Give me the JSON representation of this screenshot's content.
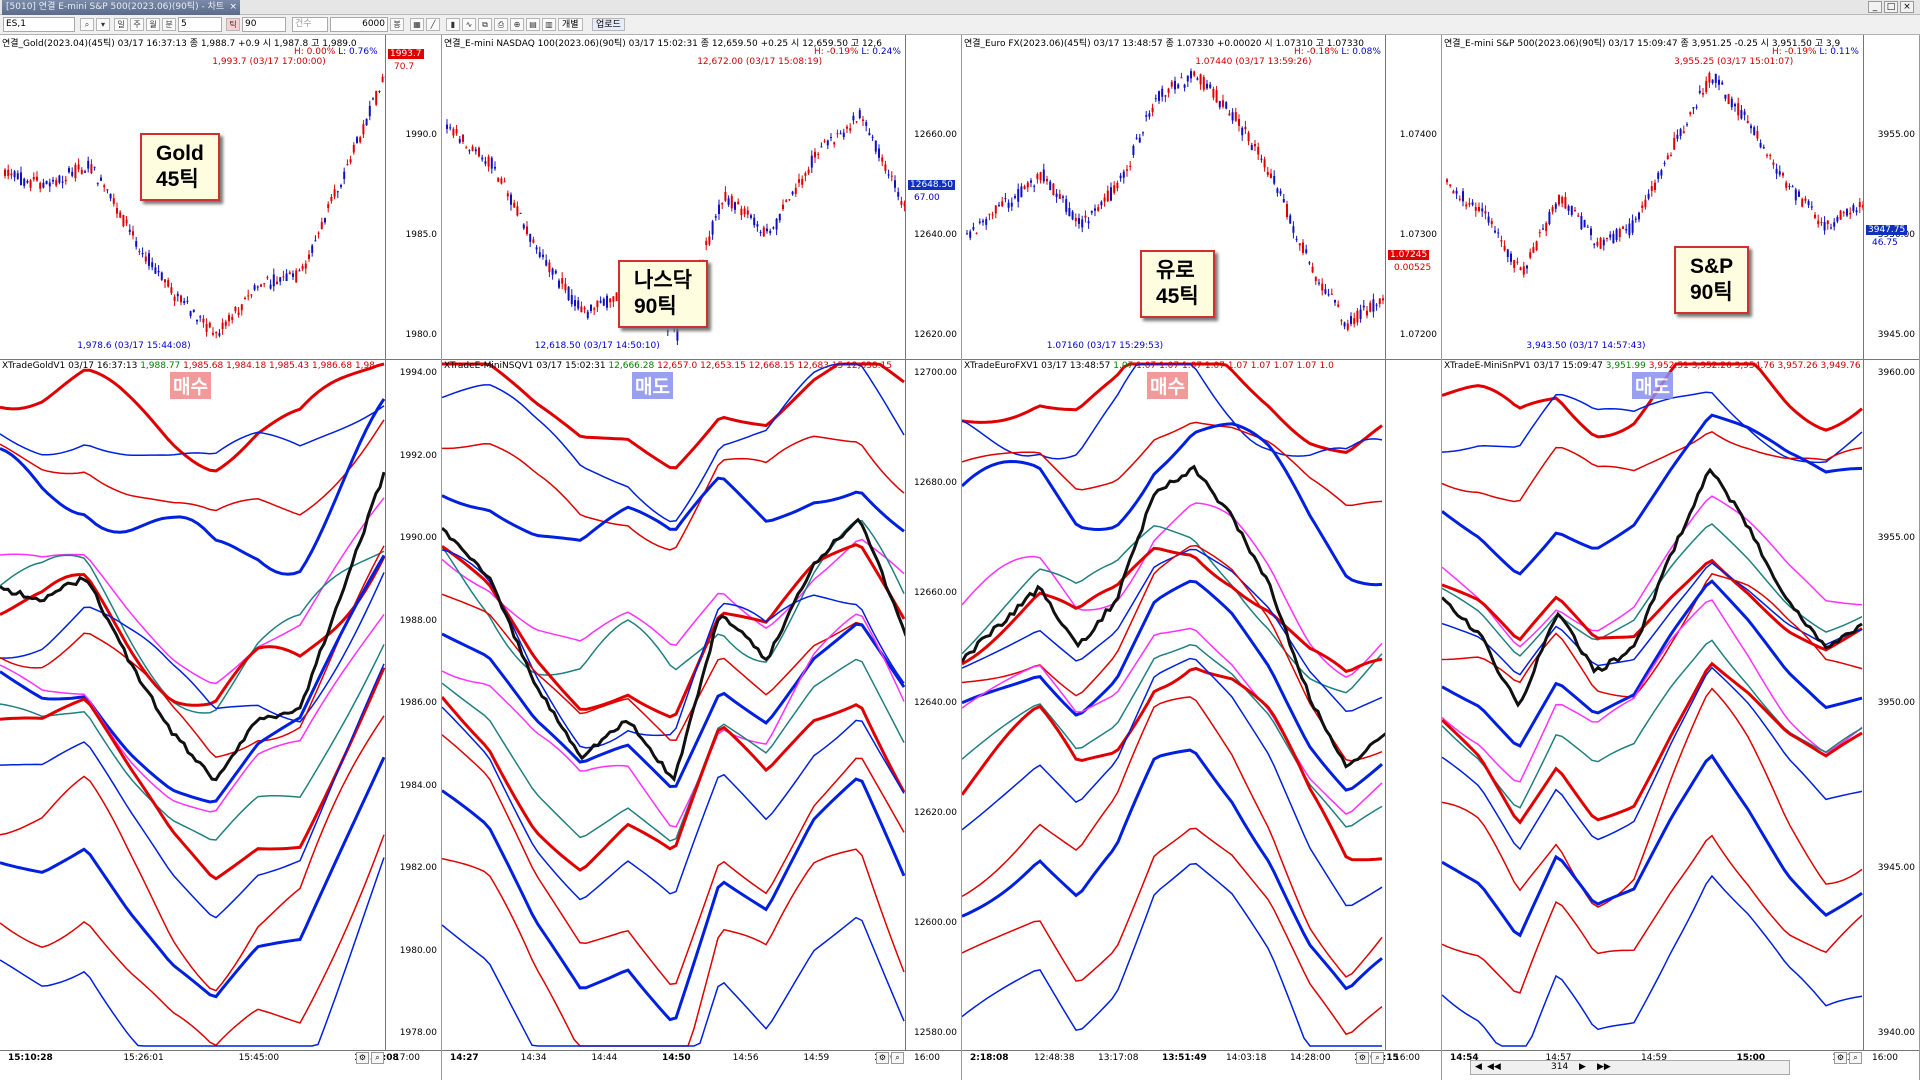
{
  "window": {
    "title": "[5010] 연결 E-mini S&P 500(2023.06)(90틱) - 차트",
    "close": "×"
  },
  "toolbar": {
    "symbol": "ES,1",
    "period_unit": "분",
    "period_value": "5",
    "tick_value": "90",
    "count_label": "건수",
    "count_value": "6000",
    "count_unit": "봉",
    "btn_day": "일",
    "btn_week": "주",
    "btn_month": "월",
    "btn_min": "분",
    "btn_tick": "틱",
    "btn_individual": "개별",
    "btn_upload": "업로드"
  },
  "panels": [
    {
      "id": "gold",
      "header": "연결_Gold(2023.04)(45틱) 03/17 16:37:13 종 1,988.7 +0.9 시 1,987.8 고 1,989.0",
      "hl_h": "H: 0.00%",
      "hl_l": "L: 0.76%",
      "hi_label": "1,993.7 (03/17 17:00:00)",
      "lo_label": "1,978.6 (03/17 15:44:08)",
      "price_tag": "1993.7",
      "price_sub": "70.7",
      "upper_ticks": [
        "1990.0",
        "1985.0",
        "1980.0"
      ],
      "lower_header": "XTradeGoldV1  03/17 16:37:13",
      "lower_vals": [
        "1,988.77",
        "1,985.68",
        "1,984.18",
        "1,985.43",
        "1,986.68",
        "1,98"
      ],
      "lower_ticks": [
        "1994.00",
        "1992.00",
        "1990.00",
        "1988.00",
        "1986.00",
        "1984.00",
        "1982.00",
        "1980.00",
        "1978.00"
      ],
      "x_ticks": [
        "15:10:28",
        "15:26:01",
        "15:45:00",
        "16:32:08",
        "17:00"
      ],
      "note_title": "Gold",
      "note_sub": "45틱",
      "badge": "매수"
    },
    {
      "id": "nasdaq",
      "header": "연결_E-mini NASDAQ 100(2023.06)(90틱) 03/17 15:02:31 종 12,659.50 +0.25 시 12,659.50 고 12,6",
      "hl_h": "H: -0.19%",
      "hl_l": "L: 0.24%",
      "hi_label": "12,672.00 (03/17 15:08:19)",
      "lo_label": "12,618.50 (03/17 14:50:10)",
      "price_tag": "12648.50",
      "price_sub": "67.00",
      "upper_ticks": [
        "12660.00",
        "12640.00",
        "12620.00"
      ],
      "lower_header": "XTradeE-MiniNSQV1  03/17 15:02:31",
      "lower_vals": [
        "12,666.28",
        "12,657.0",
        "12,653.15",
        "12,668.15",
        "12,683.15",
        "12,638.15"
      ],
      "lower_ticks": [
        "12700.00",
        "12680.00",
        "12660.00",
        "12640.00",
        "12620.00",
        "12600.00",
        "12580.00"
      ],
      "x_ticks": [
        "14:27",
        "14:34",
        "14:44",
        "14:50",
        "14:56",
        "14:59",
        "15:06",
        "16:00"
      ],
      "note_title": "나스닥",
      "note_sub": "90틱",
      "badge": "매도"
    },
    {
      "id": "euro",
      "header": "연결_Euro FX(2023.06)(45틱) 03/17 13:48:57 종 1.07330 +0.00020 시 1.07310 고 1.07330",
      "hl_h": "H: -0.18%",
      "hl_l": "L: 0.08%",
      "hi_label": "1.07440 (03/17 13:59:26)",
      "lo_label": "1.07160 (03/17 15:29:53)",
      "price_tag": "1.07245",
      "price_sub": "0.00525",
      "upper_ticks": [
        "1.07400",
        "1.07300",
        "1.07200"
      ],
      "lower_header": "XTradeEuroFXV1  03/17 13:48:57",
      "lower_vals": [
        "1.07",
        "1.07",
        "1.07",
        "1.07",
        "1.07",
        "1.07",
        "1.07",
        "1.07",
        "1.07",
        "1.0"
      ],
      "lower_ticks": [],
      "x_ticks": [
        "2:18:08",
        "12:48:38",
        "13:17:08",
        "13:51:49",
        "14:03:18",
        "14:28:00",
        "15:08:15",
        "16:00"
      ],
      "note_title": "유로",
      "note_sub": "45틱",
      "badge": "매수"
    },
    {
      "id": "sp",
      "header": "연결_E-mini S&P 500(2023.06)(90틱) 03/17 15:09:47 종 3,951.25 -0.25 시 3,951.50 고 3,9",
      "hl_h": "H: -0.19%",
      "hl_l": "L: 0.11%",
      "hi_label": "3,955.25 (03/17 15:01:07)",
      "lo_label": "3,943.50 (03/17 14:57:43)",
      "price_tag": "3947.75",
      "price_sub": "46.75",
      "upper_ticks": [
        "3955.00",
        "3950.00",
        "3945.00"
      ],
      "lower_header": "XTradeE-MiniSnPV1  03/17 15:09:47",
      "lower_vals": [
        "3,951.99",
        "3,952.51",
        "3,952.26",
        "3,954.76",
        "3,957.26",
        "3,949.76"
      ],
      "lower_ticks": [
        "3960.00",
        "3955.00",
        "3950.00",
        "3945.00",
        "3940.00"
      ],
      "x_ticks": [
        "14:54",
        "14:57",
        "14:59",
        "15:00",
        "15:13",
        "16:00"
      ],
      "note_title": "S&P",
      "note_sub": "90틱",
      "badge": "매도"
    }
  ],
  "scrollbar": {
    "value": "314"
  }
}
